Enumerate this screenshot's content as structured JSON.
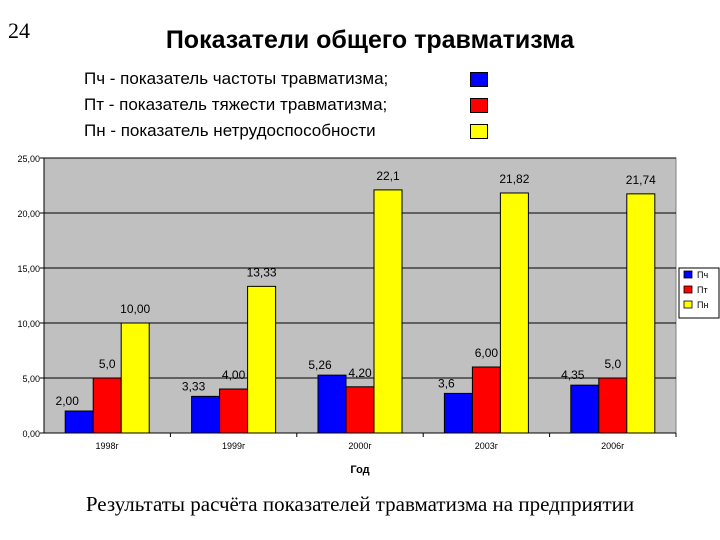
{
  "slide_number": "24",
  "title": "Показатели общего травматизма",
  "legend_top": [
    {
      "text": "Пч - показатель частоты травматизма;",
      "color": "#0000ff"
    },
    {
      "text": "Пт - показатель тяжести травматизма;",
      "color": "#ff0000"
    },
    {
      "text": "Пн - показатель нетрудоспособности",
      "color": "#ffff00"
    }
  ],
  "caption": "Результаты расчёта показателей травматизма на предприятии",
  "chart_data": {
    "type": "bar",
    "categories": [
      "1998г",
      "1999г",
      "2000г",
      "2003г",
      "2006г"
    ],
    "series": [
      {
        "name": "Пч",
        "color": "#0000ff",
        "values": [
          2.0,
          3.33,
          5.26,
          3.6,
          4.35
        ],
        "labels": [
          "2,00",
          "3,33",
          "5,26",
          "3,6",
          "4,35"
        ]
      },
      {
        "name": "Пт",
        "color": "#ff0000",
        "values": [
          5.0,
          4.0,
          4.2,
          6.0,
          5.0
        ],
        "labels": [
          "5,0",
          "4,00",
          "4,20",
          "6,00",
          "5,0"
        ]
      },
      {
        "name": "Пн",
        "color": "#ffff00",
        "values": [
          10.0,
          13.33,
          22.1,
          21.82,
          21.74
        ],
        "labels": [
          "10,00",
          "13,33",
          "22,1",
          "21,82",
          "21,74"
        ]
      }
    ],
    "xlabel": "Год",
    "ylabel": "",
    "ylim": [
      0,
      25
    ],
    "yticks": [
      0,
      5,
      10,
      15,
      20,
      25
    ],
    "ytick_labels": [
      "0,00",
      "5,00",
      "10,00",
      "15,00",
      "20,00",
      "25,00"
    ],
    "grid": true,
    "plot_background": "#c0c0c0",
    "legend_position": "right"
  }
}
